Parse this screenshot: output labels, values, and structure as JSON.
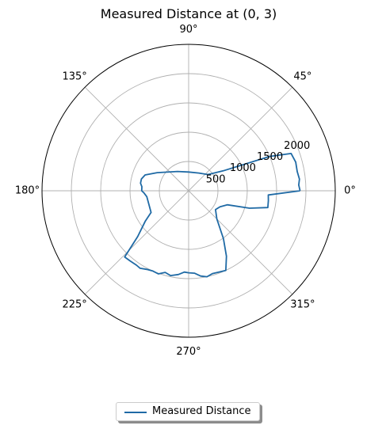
{
  "colors": {
    "series": "#1f6aa5",
    "grid": "#b0b0b0",
    "axis": "#000000"
  },
  "chart_data": {
    "type": "polar-line",
    "title": "Measured Distance at (0, 3)",
    "theta_ticks": [
      "0°",
      "45°",
      "90°",
      "135°",
      "180°",
      "225°",
      "270°",
      "315°"
    ],
    "theta_tick_degrees": [
      0,
      45,
      90,
      135,
      180,
      225,
      270,
      315
    ],
    "r_ticks": [
      "500",
      "1000",
      "1500",
      "2000"
    ],
    "r_tick_values": [
      500,
      1000,
      1500,
      2000
    ],
    "rlim": [
      0,
      2500
    ],
    "r_label_angle_deg": 22.5,
    "grid": true,
    "legend_position": "below-center",
    "series": [
      {
        "name": "Measured Distance",
        "points": [
          {
            "theta": 0,
            "r": 1900
          },
          {
            "theta": 3,
            "r": 1880
          },
          {
            "theta": 6,
            "r": 1900
          },
          {
            "theta": 10,
            "r": 1880
          },
          {
            "theta": 15,
            "r": 1890
          },
          {
            "theta": 20,
            "r": 1860
          },
          {
            "theta": 23,
            "r": 1500
          },
          {
            "theta": 30,
            "r": 680
          },
          {
            "theta": 40,
            "r": 430
          },
          {
            "theta": 60,
            "r": 350
          },
          {
            "theta": 90,
            "r": 320
          },
          {
            "theta": 120,
            "r": 380
          },
          {
            "theta": 150,
            "r": 620
          },
          {
            "theta": 160,
            "r": 790
          },
          {
            "theta": 166,
            "r": 830
          },
          {
            "theta": 171,
            "r": 830
          },
          {
            "theta": 175,
            "r": 800
          },
          {
            "theta": 180,
            "r": 800
          },
          {
            "theta": 183,
            "r": 760
          },
          {
            "theta": 188,
            "r": 720
          },
          {
            "theta": 210,
            "r": 740
          },
          {
            "theta": 215,
            "r": 900
          },
          {
            "theta": 222,
            "r": 1170
          },
          {
            "theta": 226,
            "r": 1570
          },
          {
            "theta": 230,
            "r": 1560
          },
          {
            "theta": 235,
            "r": 1550
          },
          {
            "theta": 238,
            "r": 1560
          },
          {
            "theta": 242,
            "r": 1520
          },
          {
            "theta": 246,
            "r": 1500
          },
          {
            "theta": 250,
            "r": 1510
          },
          {
            "theta": 254,
            "r": 1450
          },
          {
            "theta": 258,
            "r": 1480
          },
          {
            "theta": 263,
            "r": 1440
          },
          {
            "theta": 267,
            "r": 1390
          },
          {
            "theta": 270,
            "r": 1400
          },
          {
            "theta": 274,
            "r": 1410
          },
          {
            "theta": 278,
            "r": 1470
          },
          {
            "theta": 282,
            "r": 1500
          },
          {
            "theta": 286,
            "r": 1470
          },
          {
            "theta": 290,
            "r": 1480
          },
          {
            "theta": 295,
            "r": 1500
          },
          {
            "theta": 300,
            "r": 1290
          },
          {
            "theta": 306,
            "r": 1010
          },
          {
            "theta": 315,
            "r": 680
          },
          {
            "theta": 325,
            "r": 560
          },
          {
            "theta": 333,
            "r": 600
          },
          {
            "theta": 340,
            "r": 700
          },
          {
            "theta": 344,
            "r": 1080
          },
          {
            "theta": 348,
            "r": 1380
          },
          {
            "theta": 353,
            "r": 1370
          },
          {
            "theta": 357,
            "r": 1360
          },
          {
            "theta": 360,
            "r": 1900
          }
        ]
      }
    ]
  }
}
